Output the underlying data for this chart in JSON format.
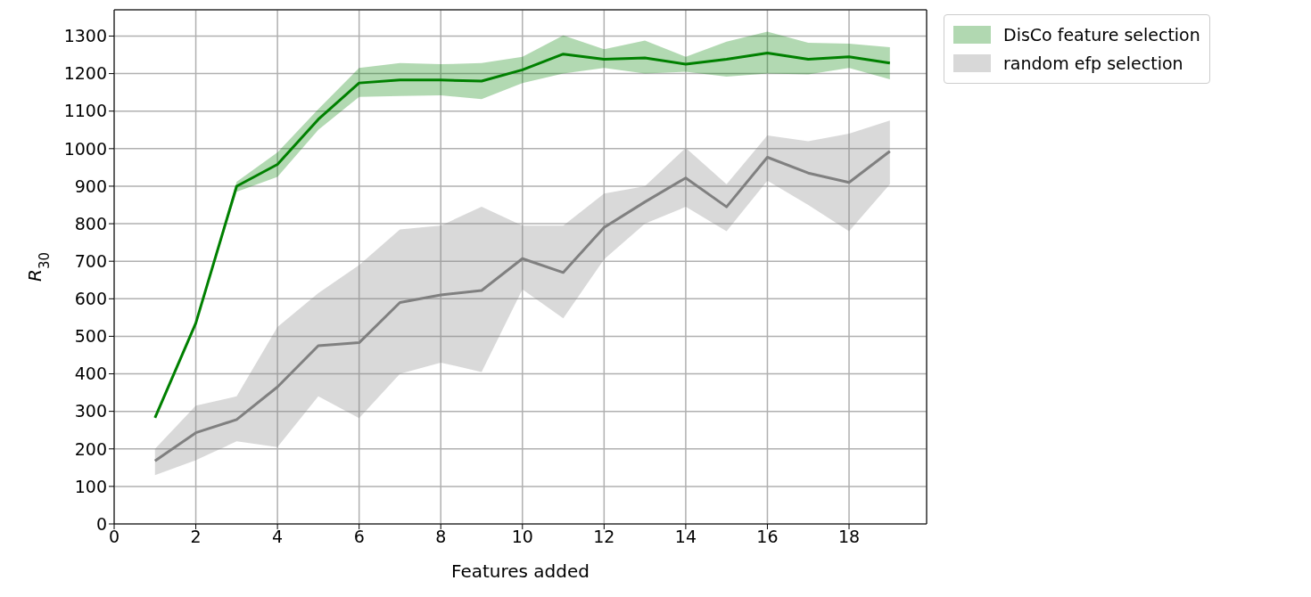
{
  "chart_data": {
    "type": "line",
    "xlabel": "Features added",
    "ylabel": "R$_{30}$",
    "x": [
      1,
      2,
      3,
      4,
      5,
      6,
      7,
      8,
      9,
      10,
      11,
      12,
      13,
      14,
      15,
      16,
      17,
      18,
      19
    ],
    "series": [
      {
        "name": "DisCo feature selection",
        "color": "#008000",
        "values": [
          283,
          535,
          900,
          958,
          1078,
          1175,
          1183,
          1183,
          1180,
          1210,
          1252,
          1238,
          1242,
          1225,
          1238,
          1255,
          1238,
          1245,
          1228
        ],
        "lower": [
          283,
          535,
          885,
          925,
          1050,
          1138,
          1140,
          1142,
          1132,
          1175,
          1200,
          1215,
          1200,
          1205,
          1192,
          1200,
          1198,
          1215,
          1185
        ],
        "upper": [
          283,
          535,
          912,
          990,
          1105,
          1215,
          1228,
          1225,
          1228,
          1245,
          1302,
          1265,
          1288,
          1245,
          1285,
          1312,
          1282,
          1280,
          1270
        ]
      },
      {
        "name": "random efp selection",
        "color": "#808080",
        "values": [
          168,
          243,
          278,
          365,
          475,
          483,
          590,
          610,
          622,
          707,
          670,
          790,
          858,
          922,
          845,
          977,
          935,
          910,
          993
        ],
        "lower": [
          130,
          170,
          220,
          205,
          340,
          282,
          400,
          430,
          405,
          625,
          548,
          705,
          800,
          845,
          780,
          915,
          850,
          780,
          905
        ],
        "upper": [
          200,
          315,
          340,
          525,
          615,
          690,
          785,
          795,
          845,
          795,
          795,
          880,
          900,
          1002,
          905,
          1035,
          1020,
          1040,
          1075
        ]
      }
    ],
    "xlim": [
      0,
      19.9
    ],
    "xticks": [
      0,
      2,
      4,
      6,
      8,
      10,
      12,
      14,
      16,
      18
    ],
    "ylim": [
      0,
      1370
    ],
    "yticks": [
      0,
      100,
      200,
      300,
      400,
      500,
      600,
      700,
      800,
      900,
      1000,
      1100,
      1200,
      1300
    ],
    "grid": true,
    "legend": "top right"
  }
}
